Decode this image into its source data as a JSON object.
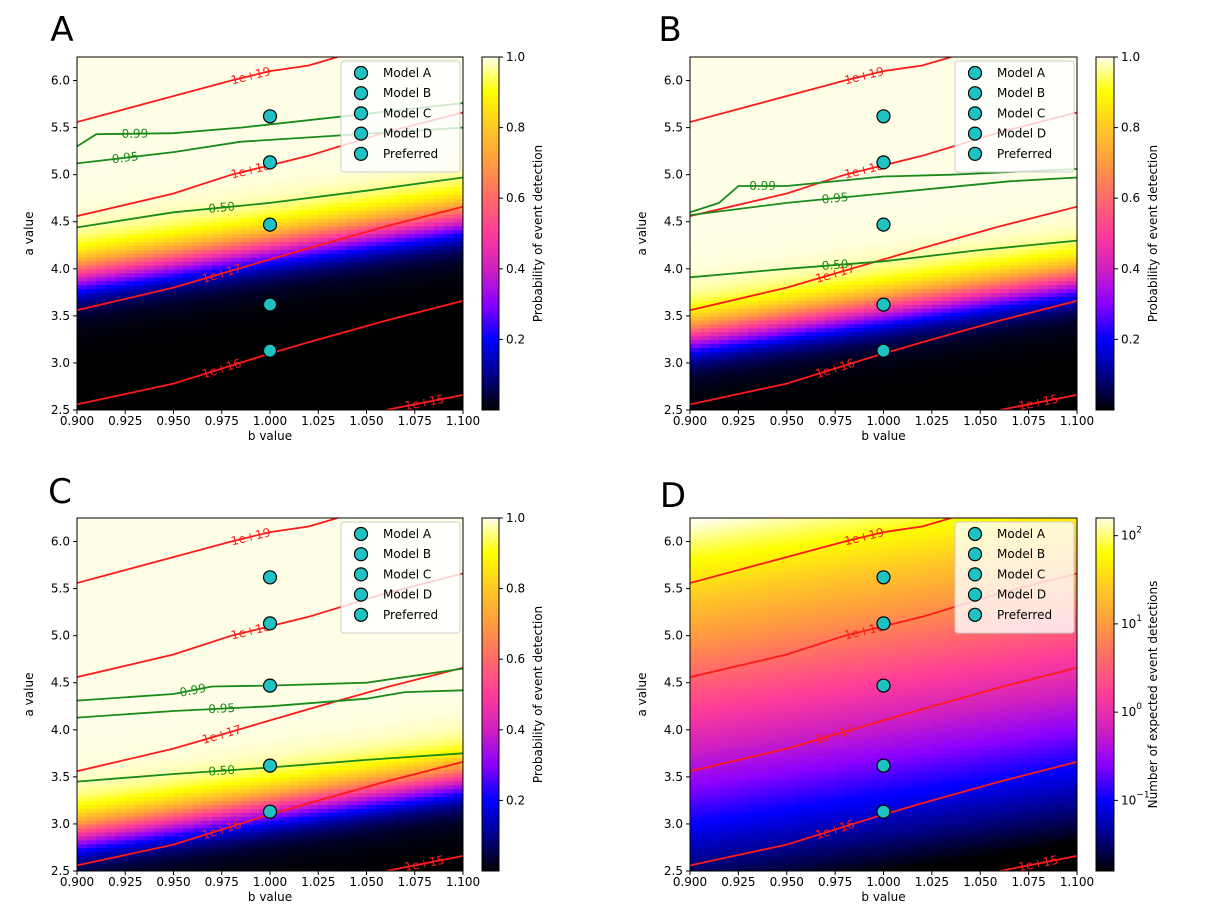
{
  "figure": {
    "panel_letters": [
      "A",
      "B",
      "C",
      "D"
    ],
    "colormap": [
      "#000000",
      "#00008a",
      "#0000ff",
      "#8a00ff",
      "#d020c0",
      "#ff3c9a",
      "#ff6a6a",
      "#ff9b40",
      "#ffc826",
      "#ffff00",
      "#ffffe8"
    ]
  },
  "chart_data": [
    {
      "panel": "A",
      "type": "heatmap",
      "xlabel": "b value",
      "ylabel": "a value",
      "xlim": [
        0.9,
        1.1
      ],
      "ylim": [
        2.5,
        6.25
      ],
      "xticks": [
        "0.900",
        "0.925",
        "0.950",
        "0.975",
        "1.000",
        "1.025",
        "1.050",
        "1.075",
        "1.100"
      ],
      "yticks": [
        "2.5",
        "3.0",
        "3.5",
        "4.0",
        "4.5",
        "5.0",
        "5.5",
        "6.0"
      ],
      "colorbar": {
        "label": "Probability of event detection",
        "scale": "linear",
        "range": [
          0,
          1
        ],
        "ticks": [
          "0.2",
          "0.4",
          "0.6",
          "0.8",
          "1.0"
        ]
      },
      "field": {
        "kind": "probability",
        "x0": 4.25,
        "width": 0.55,
        "slope": 3.0
      },
      "contours_red": [
        {
          "label": "1e+19",
          "points": [
            [
              0.9,
              5.56
            ],
            [
              0.98,
              6.0
            ],
            [
              1.0,
              6.1
            ],
            [
              1.02,
              6.16
            ],
            [
              1.035,
              6.25
            ]
          ]
        },
        {
          "label": "1e+18",
          "points": [
            [
              0.9,
              4.56
            ],
            [
              0.95,
              4.8
            ],
            [
              0.98,
              5.0
            ],
            [
              1.0,
              5.1
            ],
            [
              1.02,
              5.2
            ],
            [
              1.06,
              5.45
            ],
            [
              1.1,
              5.66
            ]
          ]
        },
        {
          "label": "1e+17",
          "points": [
            [
              0.9,
              3.56
            ],
            [
              0.95,
              3.8
            ],
            [
              1.0,
              4.1
            ],
            [
              1.02,
              4.22
            ],
            [
              1.06,
              4.45
            ],
            [
              1.1,
              4.66
            ]
          ]
        },
        {
          "label": "1e+16",
          "points": [
            [
              0.9,
              2.56
            ],
            [
              0.95,
              2.78
            ],
            [
              1.0,
              3.1
            ],
            [
              1.02,
              3.22
            ],
            [
              1.06,
              3.45
            ],
            [
              1.1,
              3.66
            ]
          ]
        },
        {
          "label": "1e+15",
          "points": [
            [
              1.06,
              2.5
            ],
            [
              1.1,
              2.66
            ]
          ]
        }
      ],
      "contours_green": [
        {
          "label": "0.99",
          "points": [
            [
              0.9,
              5.3
            ],
            [
              0.91,
              5.43
            ],
            [
              0.95,
              5.44
            ],
            [
              0.985,
              5.5
            ],
            [
              1.1,
              5.76
            ]
          ]
        },
        {
          "label": "0.95",
          "points": [
            [
              0.9,
              5.12
            ],
            [
              0.95,
              5.24
            ],
            [
              0.985,
              5.35
            ],
            [
              1.1,
              5.5
            ]
          ]
        },
        {
          "label": "0.50",
          "points": [
            [
              0.9,
              4.44
            ],
            [
              0.95,
              4.6
            ],
            [
              1.0,
              4.7
            ],
            [
              1.05,
              4.83
            ],
            [
              1.1,
              4.97
            ]
          ]
        }
      ],
      "points": [
        {
          "name": "Model A",
          "x": 1.0,
          "y": 5.62
        },
        {
          "name": "Model B",
          "x": 1.0,
          "y": 5.13
        },
        {
          "name": "Model C",
          "x": 1.0,
          "y": 4.47
        },
        {
          "name": "Model D",
          "x": 1.0,
          "y": 3.62
        },
        {
          "name": "Preferred",
          "x": 1.0,
          "y": 3.13
        }
      ],
      "legend": [
        "Model A",
        "Model B",
        "Model C",
        "Model D",
        "Preferred"
      ],
      "legend_loc": "upper-right"
    },
    {
      "panel": "B",
      "type": "heatmap",
      "xlabel": "b value",
      "ylabel": "a value",
      "xlim": [
        0.9,
        1.1
      ],
      "ylim": [
        2.5,
        6.25
      ],
      "xticks": [
        "0.900",
        "0.925",
        "0.950",
        "0.975",
        "1.000",
        "1.025",
        "1.050",
        "1.075",
        "1.100"
      ],
      "yticks": [
        "2.5",
        "3.0",
        "3.5",
        "4.0",
        "4.5",
        "5.0",
        "5.5",
        "6.0"
      ],
      "colorbar": {
        "label": "Probability of event detection",
        "scale": "linear",
        "range": [
          0,
          1
        ],
        "ticks": [
          "0.2",
          "0.4",
          "0.6",
          "0.8",
          "1.0"
        ]
      },
      "field": {
        "kind": "probability",
        "x0": 3.6,
        "width": 0.55,
        "slope": 3.0
      },
      "contours_red": [
        {
          "label": "1e+19",
          "points": [
            [
              0.9,
              5.56
            ],
            [
              0.98,
              6.0
            ],
            [
              1.0,
              6.1
            ],
            [
              1.02,
              6.16
            ],
            [
              1.035,
              6.25
            ]
          ]
        },
        {
          "label": "1e+18",
          "points": [
            [
              0.9,
              4.56
            ],
            [
              0.95,
              4.8
            ],
            [
              0.98,
              5.0
            ],
            [
              1.0,
              5.1
            ],
            [
              1.02,
              5.2
            ],
            [
              1.06,
              5.45
            ],
            [
              1.1,
              5.66
            ]
          ]
        },
        {
          "label": "1e+17",
          "points": [
            [
              0.9,
              3.56
            ],
            [
              0.95,
              3.8
            ],
            [
              1.0,
              4.1
            ],
            [
              1.02,
              4.22
            ],
            [
              1.06,
              4.45
            ],
            [
              1.1,
              4.66
            ]
          ]
        },
        {
          "label": "1e+16",
          "points": [
            [
              0.9,
              2.56
            ],
            [
              0.95,
              2.78
            ],
            [
              1.0,
              3.1
            ],
            [
              1.02,
              3.22
            ],
            [
              1.06,
              3.45
            ],
            [
              1.1,
              3.66
            ]
          ]
        },
        {
          "label": "1e+15",
          "points": [
            [
              1.06,
              2.5
            ],
            [
              1.1,
              2.66
            ]
          ]
        }
      ],
      "contours_green": [
        {
          "label": "0.99",
          "points": [
            [
              0.9,
              4.6
            ],
            [
              0.915,
              4.7
            ],
            [
              0.925,
              4.88
            ],
            [
              0.95,
              4.88
            ],
            [
              1.0,
              4.98
            ],
            [
              1.035,
              5.0
            ],
            [
              1.1,
              5.06
            ]
          ]
        },
        {
          "label": "0.95",
          "points": [
            [
              0.9,
              4.57
            ],
            [
              0.95,
              4.7
            ],
            [
              1.0,
              4.8
            ],
            [
              1.065,
              4.93
            ],
            [
              1.1,
              4.97
            ]
          ]
        },
        {
          "label": "0.50",
          "points": [
            [
              0.9,
              3.91
            ],
            [
              0.95,
              4.0
            ],
            [
              1.0,
              4.08
            ],
            [
              1.05,
              4.2
            ],
            [
              1.1,
              4.3
            ]
          ]
        }
      ],
      "points": [
        {
          "name": "Model A",
          "x": 1.0,
          "y": 5.62
        },
        {
          "name": "Model B",
          "x": 1.0,
          "y": 5.13
        },
        {
          "name": "Model C",
          "x": 1.0,
          "y": 4.47
        },
        {
          "name": "Model D",
          "x": 1.0,
          "y": 3.62
        },
        {
          "name": "Preferred",
          "x": 1.0,
          "y": 3.13
        }
      ],
      "legend": [
        "Model A",
        "Model B",
        "Model C",
        "Model D",
        "Preferred"
      ],
      "legend_loc": "upper-right"
    },
    {
      "panel": "C",
      "type": "heatmap",
      "xlabel": "b value",
      "ylabel": "a value",
      "xlim": [
        0.9,
        1.1
      ],
      "ylim": [
        2.5,
        6.25
      ],
      "xticks": [
        "0.900",
        "0.925",
        "0.950",
        "0.975",
        "1.000",
        "1.025",
        "1.050",
        "1.075",
        "1.100"
      ],
      "yticks": [
        "2.5",
        "3.0",
        "3.5",
        "4.0",
        "4.5",
        "5.0",
        "5.5",
        "6.0"
      ],
      "colorbar": {
        "label": "Probability of event detection",
        "scale": "linear",
        "range": [
          0,
          1
        ],
        "ticks": [
          "0.2",
          "0.4",
          "0.6",
          "0.8",
          "1.0"
        ]
      },
      "field": {
        "kind": "probability",
        "x0": 3.2,
        "width": 0.55,
        "slope": 3.0
      },
      "contours_red": [
        {
          "label": "1e+19",
          "points": [
            [
              0.9,
              5.56
            ],
            [
              0.98,
              6.0
            ],
            [
              1.0,
              6.1
            ],
            [
              1.02,
              6.16
            ],
            [
              1.035,
              6.25
            ]
          ]
        },
        {
          "label": "1e+18",
          "points": [
            [
              0.9,
              4.56
            ],
            [
              0.95,
              4.8
            ],
            [
              0.98,
              5.0
            ],
            [
              1.0,
              5.1
            ],
            [
              1.02,
              5.2
            ],
            [
              1.06,
              5.45
            ],
            [
              1.1,
              5.66
            ]
          ]
        },
        {
          "label": "1e+17",
          "points": [
            [
              0.9,
              3.56
            ],
            [
              0.95,
              3.8
            ],
            [
              1.0,
              4.1
            ],
            [
              1.02,
              4.22
            ],
            [
              1.06,
              4.45
            ],
            [
              1.1,
              4.66
            ]
          ]
        },
        {
          "label": "1e+16",
          "points": [
            [
              0.9,
              2.56
            ],
            [
              0.95,
              2.78
            ],
            [
              1.0,
              3.1
            ],
            [
              1.02,
              3.22
            ],
            [
              1.06,
              3.45
            ],
            [
              1.1,
              3.66
            ]
          ]
        },
        {
          "label": "1e+15",
          "points": [
            [
              1.06,
              2.5
            ],
            [
              1.1,
              2.66
            ]
          ]
        }
      ],
      "contours_green": [
        {
          "label": "0.99",
          "points": [
            [
              0.9,
              4.31
            ],
            [
              0.95,
              4.38
            ],
            [
              0.97,
              4.46
            ],
            [
              1.0,
              4.47
            ],
            [
              1.05,
              4.5
            ],
            [
              1.1,
              4.65
            ]
          ]
        },
        {
          "label": "0.95",
          "points": [
            [
              0.9,
              4.13
            ],
            [
              0.95,
              4.2
            ],
            [
              1.0,
              4.25
            ],
            [
              1.05,
              4.33
            ],
            [
              1.07,
              4.4
            ],
            [
              1.1,
              4.42
            ]
          ]
        },
        {
          "label": "0.50",
          "points": [
            [
              0.9,
              3.45
            ],
            [
              0.95,
              3.53
            ],
            [
              1.0,
              3.6
            ],
            [
              1.05,
              3.68
            ],
            [
              1.1,
              3.75
            ]
          ]
        }
      ],
      "points": [
        {
          "name": "Model A",
          "x": 1.0,
          "y": 5.62
        },
        {
          "name": "Model B",
          "x": 1.0,
          "y": 5.13
        },
        {
          "name": "Model C",
          "x": 1.0,
          "y": 4.47
        },
        {
          "name": "Model D",
          "x": 1.0,
          "y": 3.62
        },
        {
          "name": "Preferred",
          "x": 1.0,
          "y": 3.13
        }
      ],
      "legend": [
        "Model A",
        "Model B",
        "Model C",
        "Model D",
        "Preferred"
      ],
      "legend_loc": "upper-right"
    },
    {
      "panel": "D",
      "type": "heatmap",
      "xlabel": "b value",
      "ylabel": "a value",
      "xlim": [
        0.9,
        1.1
      ],
      "ylim": [
        2.5,
        6.25
      ],
      "xticks": [
        "0.900",
        "0.925",
        "0.950",
        "0.975",
        "1.000",
        "1.025",
        "1.050",
        "1.075",
        "1.100"
      ],
      "yticks": [
        "2.5",
        "3.0",
        "3.5",
        "4.0",
        "4.5",
        "5.0",
        "5.5",
        "6.0"
      ],
      "colorbar": {
        "label": "Number of expected event detections",
        "scale": "log",
        "range": [
          -1.8,
          2.2
        ],
        "tick_exponents": [
          -1,
          0,
          1,
          2
        ]
      },
      "field": {
        "kind": "log",
        "x0": 4.3,
        "slope": 3.0,
        "per_unit": 1.0
      },
      "contours_red": [
        {
          "label": "1e+19",
          "points": [
            [
              0.9,
              5.56
            ],
            [
              0.98,
              6.0
            ],
            [
              1.0,
              6.1
            ],
            [
              1.02,
              6.16
            ],
            [
              1.035,
              6.25
            ]
          ]
        },
        {
          "label": "1e+18",
          "points": [
            [
              0.9,
              4.56
            ],
            [
              0.95,
              4.8
            ],
            [
              0.98,
              5.0
            ],
            [
              1.0,
              5.1
            ],
            [
              1.02,
              5.2
            ],
            [
              1.06,
              5.45
            ],
            [
              1.1,
              5.66
            ]
          ]
        },
        {
          "label": "1e+17",
          "points": [
            [
              0.9,
              3.56
            ],
            [
              0.95,
              3.8
            ],
            [
              1.0,
              4.1
            ],
            [
              1.02,
              4.22
            ],
            [
              1.06,
              4.45
            ],
            [
              1.1,
              4.66
            ]
          ]
        },
        {
          "label": "1e+16",
          "points": [
            [
              0.9,
              2.56
            ],
            [
              0.95,
              2.78
            ],
            [
              1.0,
              3.1
            ],
            [
              1.02,
              3.22
            ],
            [
              1.06,
              3.45
            ],
            [
              1.1,
              3.66
            ]
          ]
        },
        {
          "label": "1e+15",
          "points": [
            [
              1.06,
              2.5
            ],
            [
              1.1,
              2.66
            ]
          ]
        }
      ],
      "contours_green": [],
      "points": [
        {
          "name": "Model A",
          "x": 1.0,
          "y": 5.62
        },
        {
          "name": "Model B",
          "x": 1.0,
          "y": 5.13
        },
        {
          "name": "Model C",
          "x": 1.0,
          "y": 4.47
        },
        {
          "name": "Model D",
          "x": 1.0,
          "y": 3.62
        },
        {
          "name": "Preferred",
          "x": 1.0,
          "y": 3.13
        }
      ],
      "legend": [
        "Model A",
        "Model B",
        "Model C",
        "Model D",
        "Preferred"
      ],
      "legend_loc": "upper-right"
    }
  ]
}
